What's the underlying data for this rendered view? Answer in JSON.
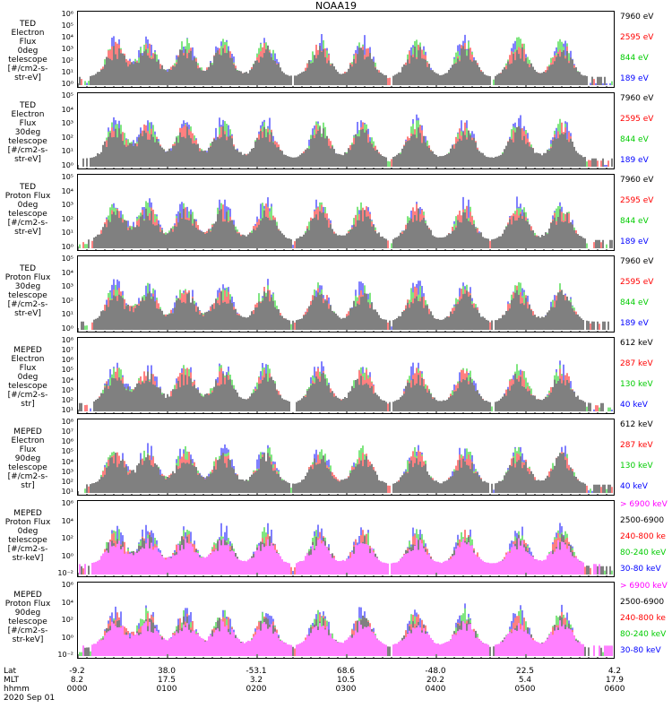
{
  "title": "NOAA19",
  "panels": [
    {
      "label": [
        "TED",
        "Electron Flux",
        "0deg telescope",
        "[#/cm2-s-str-eV]"
      ],
      "ticks": [
        "10⁶",
        "10⁵",
        "10⁴",
        "10³",
        "10²",
        "10¹",
        "10⁰"
      ],
      "legend": [
        {
          "text": "7960 eV",
          "color": "#000000"
        },
        {
          "text": "2595 eV",
          "color": "#ff0000"
        },
        {
          "text": "844 eV",
          "color": "#00cc00"
        },
        {
          "text": "189 eV",
          "color": "#0000ff"
        }
      ]
    },
    {
      "label": [
        "TED",
        "Electron Flux",
        "30deg telescope",
        "[#/cm2-s-str-eV]"
      ],
      "ticks": [
        "10⁵",
        "10⁴",
        "10³",
        "10²",
        "10¹",
        "10⁰"
      ],
      "legend": [
        {
          "text": "7960 eV",
          "color": "#000000"
        },
        {
          "text": "2595 eV",
          "color": "#ff0000"
        },
        {
          "text": "844 eV",
          "color": "#00cc00"
        },
        {
          "text": "189 eV",
          "color": "#0000ff"
        }
      ]
    },
    {
      "label": [
        "TED",
        "Proton Flux",
        "0deg telescope",
        "[#/cm2-s-str-eV]"
      ],
      "ticks": [
        "10⁵",
        "10⁴",
        "10³",
        "10²",
        "10¹",
        "10⁰"
      ],
      "legend": [
        {
          "text": "7960 eV",
          "color": "#000000"
        },
        {
          "text": "2595 eV",
          "color": "#ff0000"
        },
        {
          "text": "844 eV",
          "color": "#00cc00"
        },
        {
          "text": "189 eV",
          "color": "#0000ff"
        }
      ]
    },
    {
      "label": [
        "TED",
        "Proton Flux",
        "30deg telescope",
        "[#/cm2-s-str-eV]"
      ],
      "ticks": [
        "10⁵",
        "10⁴",
        "10³",
        "10²",
        "10¹",
        "10⁰"
      ],
      "legend": [
        {
          "text": "7960 eV",
          "color": "#000000"
        },
        {
          "text": "2595 eV",
          "color": "#ff0000"
        },
        {
          "text": "844 eV",
          "color": "#00cc00"
        },
        {
          "text": "189 eV",
          "color": "#0000ff"
        }
      ]
    },
    {
      "label": [
        "MEPED",
        "Electron Flux",
        "0deg telescope",
        "[#/cm2-s-str]"
      ],
      "ticks": [
        "10⁸",
        "10⁷",
        "10⁶",
        "10⁵",
        "10⁴",
        "10³",
        "10²",
        "10¹"
      ],
      "legend": [
        {
          "text": "612 keV",
          "color": "#000000"
        },
        {
          "text": "287 keV",
          "color": "#ff0000"
        },
        {
          "text": "130 keV",
          "color": "#00cc00"
        },
        {
          "text": "40 keV",
          "color": "#0000ff"
        }
      ]
    },
    {
      "label": [
        "MEPED",
        "Electron Flux",
        "90deg telescope",
        "[#/cm2-s-str]"
      ],
      "ticks": [
        "10⁸",
        "10⁷",
        "10⁶",
        "10⁵",
        "10⁴",
        "10³",
        "10²",
        "10¹"
      ],
      "legend": [
        {
          "text": "612 keV",
          "color": "#000000"
        },
        {
          "text": "287 keV",
          "color": "#ff0000"
        },
        {
          "text": "130 keV",
          "color": "#00cc00"
        },
        {
          "text": "40 keV",
          "color": "#0000ff"
        }
      ]
    },
    {
      "label": [
        "MEPED",
        "Proton Flux",
        "0deg telescope",
        "[#/cm2-s-str-keV]"
      ],
      "ticks": [
        "10⁶",
        "10⁴",
        "10²",
        "10⁰",
        "10⁻²"
      ],
      "legend": [
        {
          "text": "> 6900 keV",
          "color": "#ff00ff"
        },
        {
          "text": "2500-6900",
          "color": "#000000"
        },
        {
          "text": "240-800 ke",
          "color": "#ff0000"
        },
        {
          "text": "80-240 keV",
          "color": "#00cc00"
        },
        {
          "text": "30-80 keV",
          "color": "#0000ff"
        }
      ]
    },
    {
      "label": [
        "MEPED",
        "Proton Flux",
        "90deg telescope",
        "[#/cm2-s-str-keV]"
      ],
      "ticks": [
        "10⁶",
        "10⁴",
        "10²",
        "10⁰",
        "10⁻²"
      ],
      "legend": [
        {
          "text": "> 6900 keV",
          "color": "#ff00ff"
        },
        {
          "text": "2500-6900",
          "color": "#000000"
        },
        {
          "text": "240-800 ke",
          "color": "#ff0000"
        },
        {
          "text": "80-240 keV",
          "color": "#00cc00"
        },
        {
          "text": "30-80 keV",
          "color": "#0000ff"
        }
      ]
    }
  ],
  "footer": {
    "row_labels": [
      "Lat",
      "MLT",
      "hhmm",
      "2020 Sep 01"
    ]
  },
  "xticks": [
    {
      "lat": "-9.2",
      "mlt": "8.2",
      "time": "0000"
    },
    {
      "lat": "38.0",
      "mlt": "17.5",
      "time": "0100"
    },
    {
      "lat": "-53.1",
      "mlt": "3.2",
      "time": "0200"
    },
    {
      "lat": "68.6",
      "mlt": "10.5",
      "time": "0300"
    },
    {
      "lat": "-48.0",
      "mlt": "20.2",
      "time": "0400"
    },
    {
      "lat": "22.5",
      "mlt": "5.4",
      "time": "0500"
    },
    {
      "lat": "4.2",
      "mlt": "17.9",
      "time": "0600"
    }
  ],
  "chart_data": {
    "type": "line",
    "title": "NOAA19",
    "x_unit": "UT hhmm",
    "x": [
      "0000",
      "0100",
      "0200",
      "0300",
      "0400",
      "0500",
      "0600"
    ],
    "series_colors": {
      "black": "#000000",
      "red": "#ff0000",
      "green": "#00cc00",
      "blue": "#0000ff",
      "magenta": "#ff00ff"
    },
    "log_scale": true
  }
}
